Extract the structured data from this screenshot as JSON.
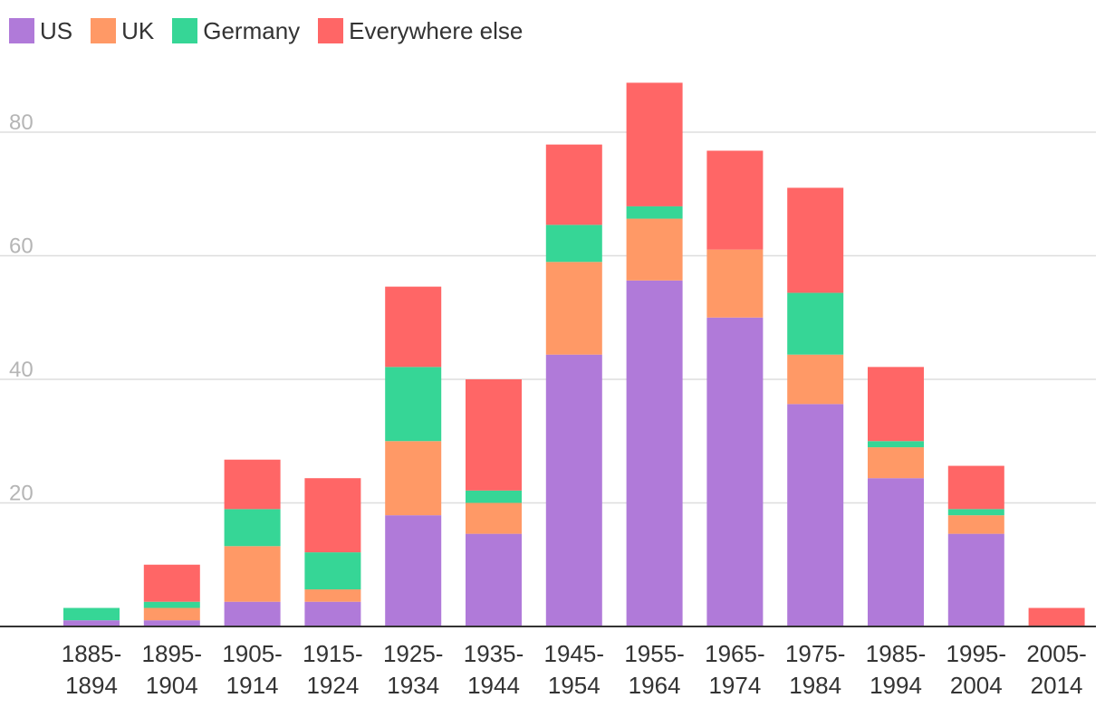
{
  "chart_data": {
    "type": "bar",
    "stacked": true,
    "categories": [
      [
        "1885-",
        "1894"
      ],
      [
        "1895-",
        "1904"
      ],
      [
        "1905-",
        "1914"
      ],
      [
        "1915-",
        "1924"
      ],
      [
        "1925-",
        "1934"
      ],
      [
        "1935-",
        "1944"
      ],
      [
        "1945-",
        "1954"
      ],
      [
        "1955-",
        "1964"
      ],
      [
        "1965-",
        "1974"
      ],
      [
        "1975-",
        "1984"
      ],
      [
        "1985-",
        "1994"
      ],
      [
        "1995-",
        "2004"
      ],
      [
        "2005-",
        "2014"
      ]
    ],
    "series": [
      {
        "name": "US",
        "color": "#b07ad9",
        "values": [
          1,
          1,
          4,
          4,
          18,
          15,
          44,
          56,
          50,
          36,
          24,
          15,
          0
        ]
      },
      {
        "name": "UK",
        "color": "#ff9966",
        "values": [
          0,
          2,
          9,
          2,
          12,
          5,
          15,
          10,
          11,
          8,
          5,
          3,
          0
        ]
      },
      {
        "name": "Germany",
        "color": "#36d696",
        "values": [
          2,
          1,
          6,
          6,
          12,
          2,
          6,
          2,
          0,
          10,
          1,
          1,
          0
        ]
      },
      {
        "name": "Everywhere else",
        "color": "#ff6666",
        "values": [
          0,
          6,
          8,
          12,
          13,
          18,
          13,
          20,
          16,
          17,
          12,
          7,
          3
        ]
      }
    ],
    "yticks": [
      20,
      40,
      60,
      80
    ],
    "ylim": [
      0,
      90
    ],
    "grid": true,
    "legend": "top-left",
    "title": "",
    "xlabel": "",
    "ylabel": ""
  }
}
